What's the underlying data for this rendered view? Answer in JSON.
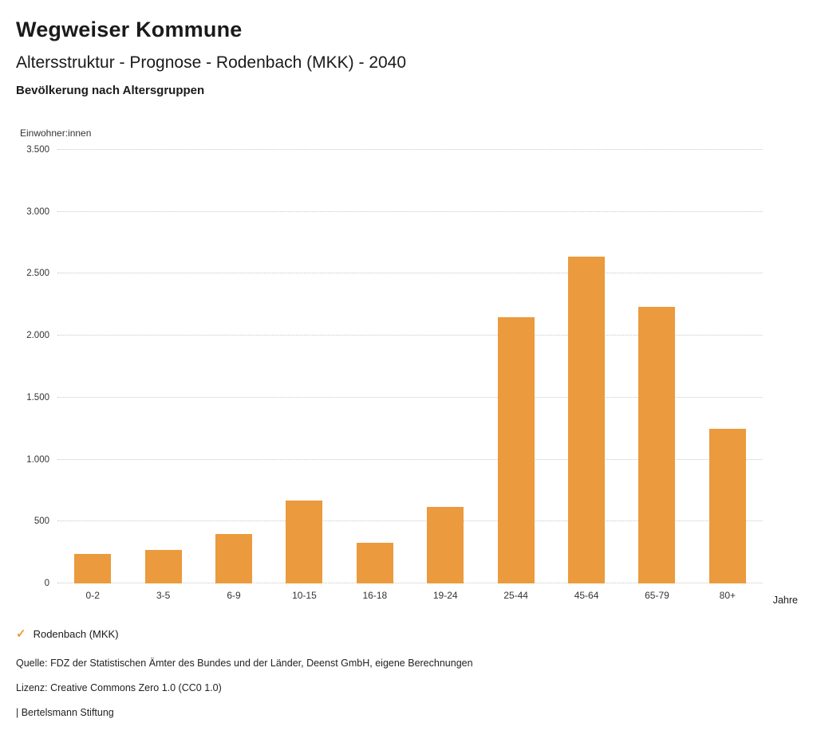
{
  "header": {
    "title": "Wegweiser Kommune",
    "subtitle": "Altersstruktur - Prognose - Rodenbach (MKK) - 2040",
    "sub_subtitle": "Bevölkerung nach Altersgruppen"
  },
  "chart_data": {
    "type": "bar",
    "title": "Altersstruktur - Prognose - Rodenbach (MKK) - 2040",
    "subtitle": "Bevölkerung nach Altersgruppen",
    "categories": [
      "0-2",
      "3-5",
      "6-9",
      "10-15",
      "16-18",
      "19-24",
      "25-44",
      "45-64",
      "65-79",
      "80+"
    ],
    "values": [
      240,
      270,
      400,
      670,
      330,
      620,
      2150,
      2640,
      2230,
      1250
    ],
    "series_name": "Rodenbach (MKK)",
    "xlabel": "Jahre",
    "ylabel": "Einwohner:innen",
    "ylim": [
      0,
      3500
    ],
    "yticks": [
      {
        "value": 0,
        "label": "0"
      },
      {
        "value": 500,
        "label": "500"
      },
      {
        "value": 1000,
        "label": "1.000"
      },
      {
        "value": 1500,
        "label": "1.500"
      },
      {
        "value": 2000,
        "label": "2.000"
      },
      {
        "value": 2500,
        "label": "2.500"
      },
      {
        "value": 3000,
        "label": "3.000"
      },
      {
        "value": 3500,
        "label": "3.500"
      }
    ],
    "bar_color": "#EB9A3D",
    "grid": "horizontal-dotted",
    "legend_position": "bottom-left"
  },
  "legend": {
    "check_icon": "✓",
    "label": "Rodenbach (MKK)"
  },
  "footer": {
    "source": "Quelle: FDZ der Statistischen Ämter des Bundes und der Länder, Deenst GmbH, eigene Berechnungen",
    "license": "Lizenz: Creative Commons Zero 1.0 (CC0 1.0)",
    "attribution": "| Bertelsmann Stiftung"
  }
}
